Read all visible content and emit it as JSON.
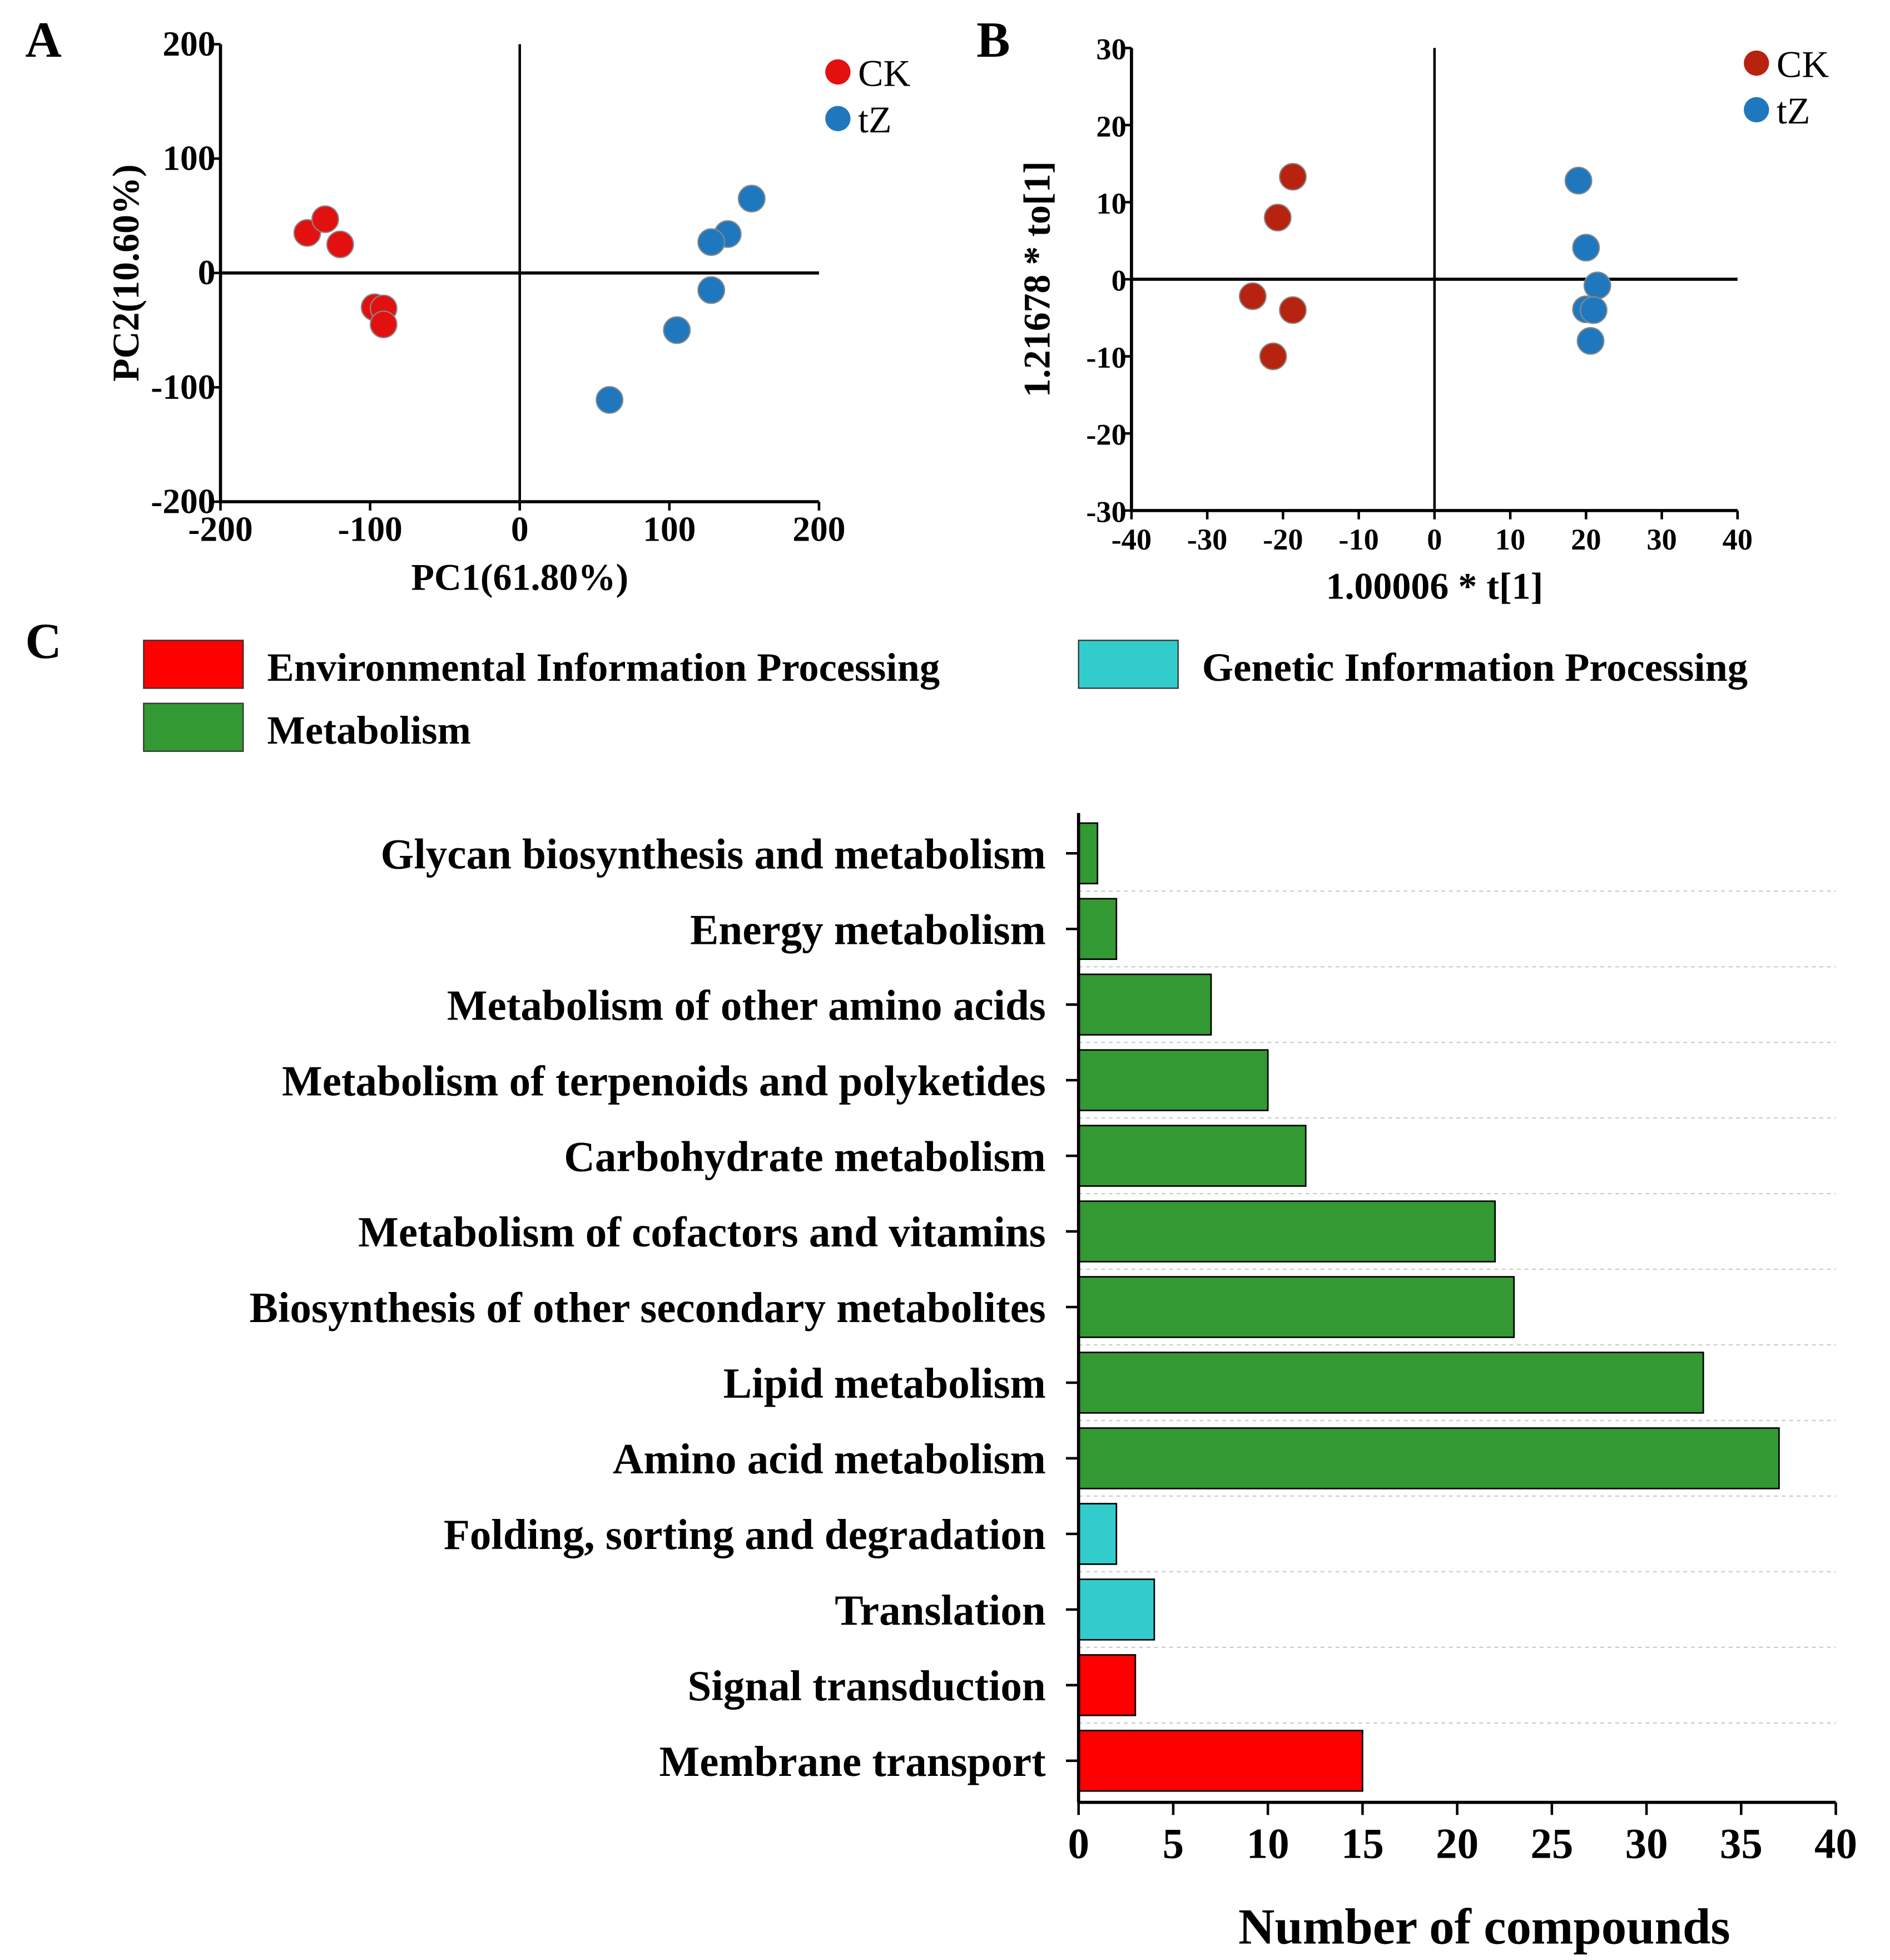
{
  "colors": {
    "ck_a": "#e31010",
    "ck_b": "#b8230f",
    "tz": "#1f78be",
    "env": "#ff0000",
    "gen": "#33cccc",
    "met": "#339933"
  },
  "chart_data": [
    {
      "panel": "A",
      "type": "scatter",
      "xlabel": "PC1(61.80%)",
      "ylabel": "PC2(10.60%)",
      "xlim": [
        -200,
        200
      ],
      "ylim": [
        -200,
        200
      ],
      "xticks": [
        -200,
        -100,
        0,
        100,
        200
      ],
      "yticks": [
        -200,
        -100,
        0,
        100,
        200
      ],
      "legend_position": "top-right",
      "series": [
        {
          "name": "CK",
          "points": [
            [
              -142,
              35
            ],
            [
              -130,
              47
            ],
            [
              -120,
              25
            ],
            [
              -97,
              -30
            ],
            [
              -91,
              -31
            ],
            [
              -91,
              -45
            ]
          ]
        },
        {
          "name": "tZ",
          "points": [
            [
              155,
              65
            ],
            [
              139,
              34
            ],
            [
              128,
              27
            ],
            [
              128,
              -15
            ],
            [
              105,
              -50
            ],
            [
              60,
              -111
            ]
          ]
        }
      ]
    },
    {
      "panel": "B",
      "type": "scatter",
      "xlabel": "1.00006 * t[1]",
      "ylabel": "1.21678 * to[1]",
      "xlim": [
        -40,
        40
      ],
      "ylim": [
        -30,
        30
      ],
      "xticks": [
        -40,
        -30,
        -20,
        -10,
        0,
        10,
        20,
        30,
        40
      ],
      "yticks": [
        -30,
        -20,
        -10,
        0,
        10,
        20,
        30
      ],
      "legend_position": "top-right",
      "series": [
        {
          "name": "CK",
          "points": [
            [
              -18.7,
              13.3
            ],
            [
              -20.7,
              8
            ],
            [
              -24,
              -2.2
            ],
            [
              -18.7,
              -4
            ],
            [
              -21.3,
              -10
            ]
          ]
        },
        {
          "name": "tZ",
          "points": [
            [
              19,
              12.8
            ],
            [
              20,
              4.1
            ],
            [
              21.5,
              -0.8
            ],
            [
              20,
              -3.9
            ],
            [
              21,
              -4
            ],
            [
              20.6,
              -8
            ]
          ]
        }
      ]
    },
    {
      "panel": "C",
      "type": "bar",
      "orientation": "horizontal",
      "xlabel": "Number of compounds",
      "ylabel": "",
      "xlim": [
        0,
        40
      ],
      "xticks": [
        0,
        5,
        10,
        15,
        20,
        25,
        30,
        35,
        40
      ],
      "legend_position": "top",
      "legend": [
        {
          "name": "Environmental Information Processing",
          "key": "env"
        },
        {
          "name": "Genetic Information Processing",
          "key": "gen"
        },
        {
          "name": "Metabolism",
          "key": "met"
        }
      ],
      "categories": [
        "Glycan biosynthesis and metabolism",
        "Energy metabolism",
        "Metabolism of other amino acids",
        "Metabolism of terpenoids and polyketides",
        "Carbohydrate metabolism",
        "Metabolism of cofactors and vitamins",
        "Biosynthesis of other secondary metabolites",
        "Lipid metabolism",
        "Amino acid metabolism",
        "Folding, sorting and degradation",
        "Translation",
        "Signal transduction",
        "Membrane transport"
      ],
      "values": [
        1,
        2,
        7,
        10,
        12,
        22,
        23,
        33,
        37,
        2,
        4,
        3,
        15
      ],
      "groups": [
        "met",
        "met",
        "met",
        "met",
        "met",
        "met",
        "met",
        "met",
        "met",
        "gen",
        "gen",
        "env",
        "env"
      ]
    }
  ]
}
